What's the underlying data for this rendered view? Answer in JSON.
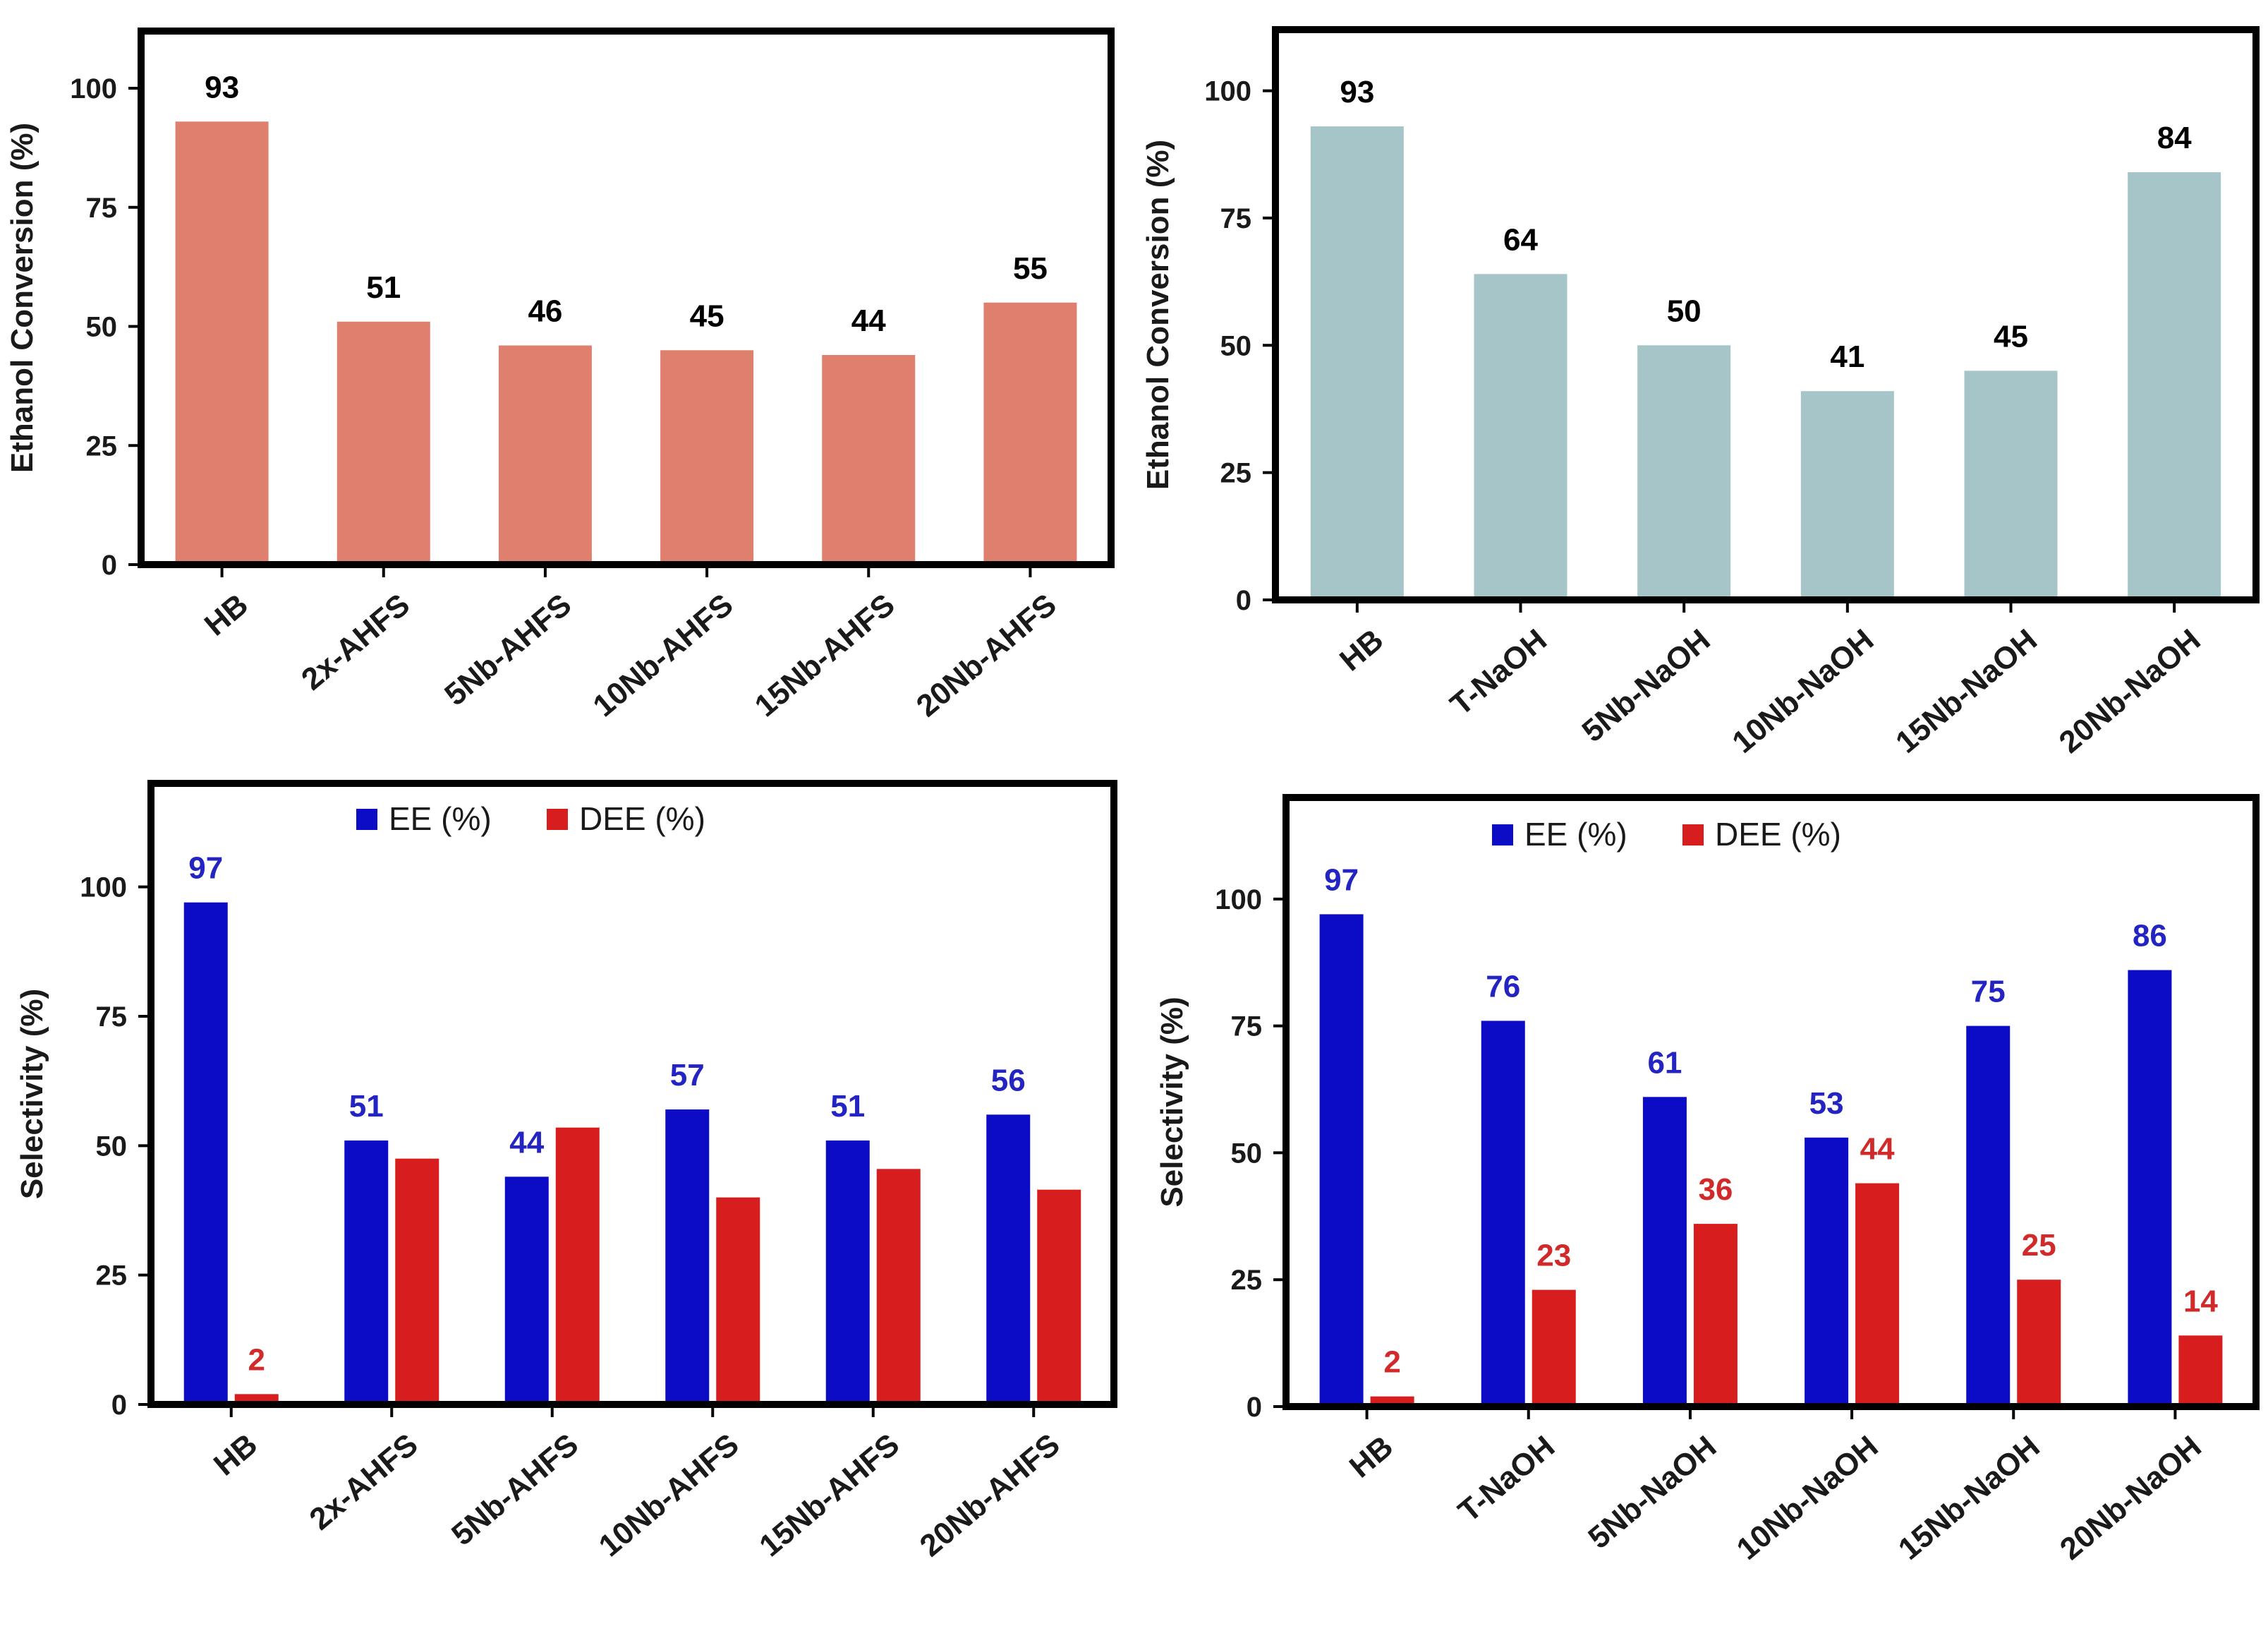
{
  "figure": {
    "colors": {
      "conversion_ahfs": "#df806e",
      "conversion_naoh": "#a5c5c8",
      "ee": "#0c0cc6",
      "dee": "#d71d1d",
      "ee_label": "#2424c2",
      "dee_label": "#d02a2a",
      "frame": "#000000"
    }
  },
  "chart_data": [
    {
      "id": "conv-ahfs",
      "type": "bar",
      "title": "",
      "xlabel": "",
      "ylabel": "Ethanol Conversion (%)",
      "ylim": [
        0,
        112
      ],
      "yticks": [
        0,
        25,
        50,
        75,
        100
      ],
      "categories": [
        "HB",
        "2x-AHFS",
        "5Nb-AHFS",
        "10Nb-AHFS",
        "15Nb-AHFS",
        "20Nb-AHFS"
      ],
      "series": [
        {
          "name": "Ethanol Conversion",
          "color_key": "conversion_ahfs",
          "label_color_key": "frame",
          "values": [
            93,
            51,
            46,
            45,
            44,
            55
          ],
          "labels": [
            "93",
            "51",
            "46",
            "45",
            "44",
            "55"
          ]
        }
      ],
      "legend": null
    },
    {
      "id": "conv-naoh",
      "type": "bar",
      "title": "",
      "xlabel": "",
      "ylabel": "Ethanol Conversion (%)",
      "ylim": [
        0,
        112
      ],
      "yticks": [
        0,
        25,
        50,
        75,
        100
      ],
      "categories": [
        "HB",
        "T-NaOH",
        "5Nb-NaOH",
        "10Nb-NaOH",
        "15Nb-NaOH",
        "20Nb-NaOH"
      ],
      "series": [
        {
          "name": "Ethanol Conversion",
          "color_key": "conversion_naoh",
          "label_color_key": "frame",
          "values": [
            93,
            64,
            50,
            41,
            45,
            84
          ],
          "labels": [
            "93",
            "64",
            "50",
            "41",
            "45",
            "84"
          ]
        }
      ],
      "legend": null
    },
    {
      "id": "sel-ahfs",
      "type": "bar",
      "title": "",
      "xlabel": "",
      "ylabel": "Selectivity (%)",
      "ylim": [
        0,
        120
      ],
      "yticks": [
        0,
        25,
        50,
        75,
        100
      ],
      "categories": [
        "HB",
        "2x-AHFS",
        "5Nb-AHFS",
        "10Nb-AHFS",
        "15Nb-AHFS",
        "20Nb-AHFS"
      ],
      "series": [
        {
          "name": "EE (%)",
          "color_key": "ee",
          "label_color_key": "ee_label",
          "values": [
            97,
            51,
            44,
            57,
            51,
            56
          ],
          "labels": [
            "97",
            "51",
            "44",
            "57",
            "51",
            "56"
          ]
        },
        {
          "name": "DEE (%)",
          "color_key": "dee",
          "label_color_key": "dee_label",
          "values": [
            2,
            47.5,
            53.5,
            40,
            45.5,
            41.5
          ],
          "labels": [
            "2",
            "",
            "",
            "",
            "",
            ""
          ]
        }
      ],
      "legend": "top-center"
    },
    {
      "id": "sel-naoh",
      "type": "bar",
      "title": "",
      "xlabel": "",
      "ylabel": "Selectivity (%)",
      "ylim": [
        0,
        120
      ],
      "yticks": [
        0,
        25,
        50,
        75,
        100
      ],
      "categories": [
        "HB",
        "T-NaOH",
        "5Nb-NaOH",
        "10Nb-NaOH",
        "15Nb-NaOH",
        "20Nb-NaOH"
      ],
      "series": [
        {
          "name": "EE (%)",
          "color_key": "ee",
          "label_color_key": "ee_label",
          "values": [
            97,
            76,
            61,
            53,
            75,
            86
          ],
          "labels": [
            "97",
            "76",
            "61",
            "53",
            "75",
            "86"
          ]
        },
        {
          "name": "DEE (%)",
          "color_key": "dee",
          "label_color_key": "dee_label",
          "values": [
            2,
            23,
            36,
            44,
            25,
            14
          ],
          "labels": [
            "2",
            "23",
            "36",
            "44",
            "25",
            "14"
          ]
        }
      ],
      "legend": "top-center"
    }
  ]
}
